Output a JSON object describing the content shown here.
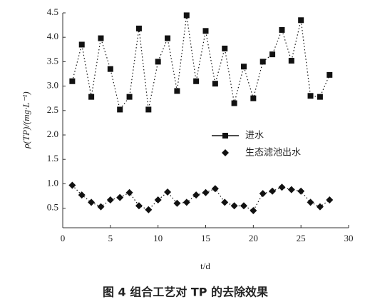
{
  "chart_data": {
    "type": "line",
    "caption": "图 4   组合工艺对 TP 的去除效果",
    "x_label": "t/d",
    "y_label": "ρ(TP)/(mg·L⁻¹)",
    "x": [
      1,
      2,
      3,
      4,
      5,
      6,
      7,
      8,
      9,
      10,
      11,
      12,
      13,
      14,
      15,
      16,
      17,
      18,
      19,
      20,
      21,
      22,
      23,
      24,
      25,
      26,
      27,
      28
    ],
    "series": [
      {
        "name": "进水",
        "color": "#111111",
        "marker": "square",
        "values": [
          3.1,
          3.85,
          2.78,
          3.98,
          3.35,
          2.52,
          2.78,
          4.18,
          2.52,
          3.5,
          3.98,
          2.9,
          4.45,
          3.1,
          4.13,
          3.05,
          3.77,
          2.65,
          3.4,
          2.75,
          3.5,
          3.65,
          4.15,
          3.52,
          4.35,
          2.8,
          2.78,
          3.23
        ]
      },
      {
        "name": "生态滤池出水",
        "color": "#111111",
        "marker": "diamond",
        "values": [
          0.97,
          0.77,
          0.62,
          0.53,
          0.67,
          0.72,
          0.82,
          0.55,
          0.47,
          0.67,
          0.83,
          0.6,
          0.62,
          0.77,
          0.82,
          0.9,
          0.62,
          0.55,
          0.55,
          0.45,
          0.8,
          0.85,
          0.93,
          0.88,
          0.85,
          0.62,
          0.53,
          0.67
        ]
      }
    ],
    "xlim": [
      0,
      30
    ],
    "xticks": [
      0,
      5,
      10,
      15,
      20,
      25,
      30
    ],
    "ylim": [
      0.1,
      4.5
    ],
    "yticks": [
      0.5,
      {
        "value": 1,
        "label": "1.0"
      },
      1.5,
      {
        "value": 2,
        "label": "2.0"
      },
      2.5,
      {
        "value": 3,
        "label": "3.0"
      },
      3.5,
      {
        "value": 4,
        "label": "4.0"
      },
      4.5
    ],
    "grid": false,
    "line_style": "dotted"
  }
}
